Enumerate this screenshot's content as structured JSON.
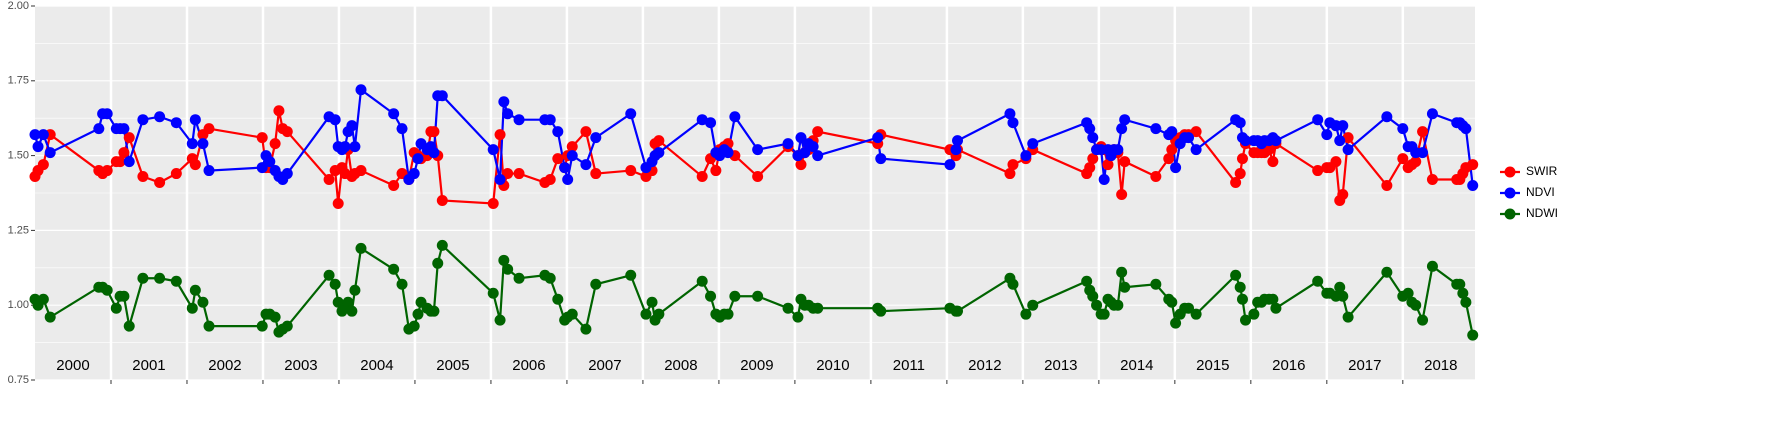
{
  "chart_data": {
    "type": "line",
    "x": [
      2000.0,
      2000.04,
      2000.11,
      2000.2,
      2000.84,
      2000.89,
      2000.95,
      2001.07,
      2001.12,
      2001.17,
      2001.24,
      2001.42,
      2001.64,
      2001.86,
      2002.07,
      2002.11,
      2002.21,
      2002.29,
      2002.99,
      2003.04,
      2003.09,
      2003.16,
      2003.21,
      2003.26,
      2003.32,
      2003.87,
      2003.95,
      2003.99,
      2004.04,
      2004.08,
      2004.12,
      2004.17,
      2004.21,
      2004.29,
      2004.72,
      2004.83,
      2004.92,
      2004.99,
      2005.04,
      2005.08,
      2005.16,
      2005.21,
      2005.25,
      2005.3,
      2005.36,
      2006.03,
      2006.12,
      2006.17,
      2006.22,
      2006.37,
      2006.71,
      2006.78,
      2006.88,
      2006.97,
      2007.01,
      2007.07,
      2007.25,
      2007.38,
      2007.84,
      2008.04,
      2008.12,
      2008.16,
      2008.21,
      2008.78,
      2008.89,
      2008.96,
      2009.01,
      2009.07,
      2009.12,
      2009.21,
      2009.51,
      2009.91,
      2010.04,
      2010.08,
      2010.13,
      2010.18,
      2010.24,
      2010.3,
      2011.09,
      2011.13,
      2012.04,
      2012.12,
      2012.14,
      2012.83,
      2012.87,
      2013.04,
      2013.13,
      2013.84,
      2013.88,
      2013.92,
      2013.97,
      2014.03,
      2014.07,
      2014.12,
      2014.16,
      2014.2,
      2014.25,
      2014.3,
      2014.34,
      2014.75,
      2014.92,
      2014.96,
      2015.01,
      2015.07,
      2015.13,
      2015.18,
      2015.28,
      2015.8,
      2015.86,
      2015.89,
      2015.93,
      2016.04,
      2016.09,
      2016.14,
      2016.18,
      2016.24,
      2016.29,
      2016.33,
      2016.88,
      2017.0,
      2017.04,
      2017.12,
      2017.17,
      2017.21,
      2017.28,
      2017.79,
      2018.0,
      2018.07,
      2018.12,
      2018.17,
      2018.26,
      2018.39,
      2018.71,
      2018.75,
      2018.79,
      2018.83,
      2018.92
    ],
    "series": [
      {
        "name": "SWIR",
        "color": "#ff0000",
        "values": [
          1.43,
          1.45,
          1.47,
          1.57,
          1.45,
          1.44,
          1.45,
          1.48,
          1.48,
          1.51,
          1.56,
          1.43,
          1.41,
          1.44,
          1.49,
          1.47,
          1.57,
          1.59,
          1.56,
          1.46,
          1.46,
          1.54,
          1.65,
          1.59,
          1.58,
          1.42,
          1.45,
          1.34,
          1.46,
          1.44,
          1.52,
          1.43,
          1.44,
          1.45,
          1.4,
          1.44,
          1.42,
          1.51,
          1.5,
          1.49,
          1.5,
          1.58,
          1.58,
          1.5,
          1.35,
          1.34,
          1.57,
          1.4,
          1.44,
          1.44,
          1.41,
          1.42,
          1.49,
          1.46,
          1.5,
          1.53,
          1.58,
          1.44,
          1.45,
          1.43,
          1.45,
          1.54,
          1.55,
          1.43,
          1.49,
          1.45,
          1.52,
          1.53,
          1.54,
          1.5,
          1.43,
          1.53,
          1.5,
          1.47,
          1.51,
          1.52,
          1.55,
          1.58,
          1.54,
          1.57,
          1.52,
          1.5,
          1.52,
          1.44,
          1.47,
          1.49,
          1.52,
          1.44,
          1.46,
          1.49,
          1.52,
          1.53,
          1.52,
          1.47,
          1.5,
          1.52,
          1.51,
          1.37,
          1.48,
          1.43,
          1.49,
          1.52,
          1.55,
          1.56,
          1.57,
          1.57,
          1.58,
          1.41,
          1.44,
          1.49,
          1.54,
          1.51,
          1.51,
          1.51,
          1.51,
          1.52,
          1.48,
          1.54,
          1.45,
          1.46,
          1.46,
          1.48,
          1.35,
          1.37,
          1.56,
          1.4,
          1.49,
          1.46,
          1.47,
          1.48,
          1.58,
          1.42,
          1.42,
          1.42,
          1.44,
          1.46,
          1.47
        ]
      },
      {
        "name": "NDVI",
        "color": "#0000ff",
        "values": [
          1.57,
          1.53,
          1.57,
          1.51,
          1.59,
          1.64,
          1.64,
          1.59,
          1.59,
          1.59,
          1.48,
          1.62,
          1.63,
          1.61,
          1.54,
          1.62,
          1.54,
          1.45,
          1.46,
          1.5,
          1.48,
          1.45,
          1.43,
          1.42,
          1.44,
          1.63,
          1.62,
          1.53,
          1.52,
          1.53,
          1.58,
          1.6,
          1.53,
          1.72,
          1.64,
          1.59,
          1.42,
          1.44,
          1.49,
          1.54,
          1.52,
          1.53,
          1.51,
          1.7,
          1.7,
          1.52,
          1.42,
          1.68,
          1.64,
          1.62,
          1.62,
          1.62,
          1.58,
          1.46,
          1.42,
          1.5,
          1.47,
          1.56,
          1.64,
          1.46,
          1.48,
          1.5,
          1.51,
          1.62,
          1.61,
          1.51,
          1.5,
          1.52,
          1.51,
          1.63,
          1.52,
          1.54,
          1.5,
          1.56,
          1.51,
          1.54,
          1.53,
          1.5,
          1.56,
          1.49,
          1.47,
          1.52,
          1.55,
          1.64,
          1.61,
          1.5,
          1.54,
          1.61,
          1.59,
          1.56,
          1.52,
          1.52,
          1.42,
          1.52,
          1.5,
          1.52,
          1.52,
          1.59,
          1.62,
          1.59,
          1.57,
          1.58,
          1.46,
          1.54,
          1.56,
          1.56,
          1.52,
          1.62,
          1.61,
          1.56,
          1.55,
          1.55,
          1.55,
          1.54,
          1.55,
          1.55,
          1.56,
          1.55,
          1.62,
          1.57,
          1.61,
          1.6,
          1.55,
          1.6,
          1.52,
          1.63,
          1.59,
          1.53,
          1.53,
          1.51,
          1.51,
          1.64,
          1.61,
          1.61,
          1.6,
          1.59,
          1.4
        ]
      },
      {
        "name": "NDWI",
        "color": "#006400",
        "values": [
          1.02,
          1.0,
          1.02,
          0.96,
          1.06,
          1.06,
          1.05,
          0.99,
          1.03,
          1.03,
          0.93,
          1.09,
          1.09,
          1.08,
          0.99,
          1.05,
          1.01,
          0.93,
          0.93,
          0.97,
          0.97,
          0.96,
          0.91,
          0.92,
          0.93,
          1.1,
          1.07,
          1.01,
          0.98,
          0.99,
          1.01,
          0.98,
          1.05,
          1.19,
          1.12,
          1.07,
          0.92,
          0.93,
          0.97,
          1.01,
          0.99,
          0.98,
          0.98,
          1.14,
          1.2,
          1.04,
          0.95,
          1.15,
          1.12,
          1.09,
          1.1,
          1.09,
          1.02,
          0.95,
          0.96,
          0.97,
          0.92,
          1.07,
          1.1,
          0.97,
          1.01,
          0.95,
          0.97,
          1.08,
          1.03,
          0.97,
          0.96,
          0.97,
          0.97,
          1.03,
          1.03,
          0.99,
          0.96,
          1.02,
          1.0,
          1.0,
          0.99,
          0.99,
          0.99,
          0.98,
          0.99,
          0.98,
          0.98,
          1.09,
          1.07,
          0.97,
          1.0,
          1.08,
          1.05,
          1.03,
          1.0,
          0.97,
          0.97,
          1.02,
          1.01,
          1.0,
          1.0,
          1.11,
          1.06,
          1.07,
          1.02,
          1.01,
          0.94,
          0.97,
          0.99,
          0.99,
          0.97,
          1.1,
          1.06,
          1.02,
          0.95,
          0.97,
          1.01,
          1.01,
          1.02,
          1.02,
          1.02,
          0.99,
          1.08,
          1.04,
          1.04,
          1.03,
          1.06,
          1.03,
          0.96,
          1.11,
          1.03,
          1.04,
          1.01,
          1.0,
          0.95,
          1.13,
          1.07,
          1.07,
          1.04,
          1.01,
          0.9
        ]
      }
    ],
    "xlim": [
      2000,
      2018.95
    ],
    "xticks": [
      2001,
      2002,
      2003,
      2004,
      2005,
      2006,
      2007,
      2008,
      2009,
      2010,
      2011,
      2012,
      2013,
      2014,
      2015,
      2016,
      2017,
      2018
    ],
    "xlabels": [
      {
        "value": 2000.5,
        "label": "2000"
      },
      {
        "value": 2001.5,
        "label": "2001"
      },
      {
        "value": 2002.5,
        "label": "2002"
      },
      {
        "value": 2003.5,
        "label": "2003"
      },
      {
        "value": 2004.5,
        "label": "2004"
      },
      {
        "value": 2005.5,
        "label": "2005"
      },
      {
        "value": 2006.5,
        "label": "2006"
      },
      {
        "value": 2007.5,
        "label": "2007"
      },
      {
        "value": 2008.5,
        "label": "2008"
      },
      {
        "value": 2009.5,
        "label": "2009"
      },
      {
        "value": 2010.5,
        "label": "2010"
      },
      {
        "value": 2011.5,
        "label": "2011"
      },
      {
        "value": 2012.5,
        "label": "2012"
      },
      {
        "value": 2013.5,
        "label": "2013"
      },
      {
        "value": 2014.5,
        "label": "2014"
      },
      {
        "value": 2015.5,
        "label": "2015"
      },
      {
        "value": 2016.5,
        "label": "2016"
      },
      {
        "value": 2017.5,
        "label": "2017"
      },
      {
        "value": 2018.5,
        "label": "2018"
      }
    ],
    "ylim": [
      0.75,
      2.0
    ],
    "yticks": [
      0.75,
      {
        "value": 1.0,
        "label": "1.00"
      },
      1.25,
      {
        "value": 1.5,
        "label": "1.50"
      },
      1.75,
      {
        "value": 2.0,
        "label": "2.00"
      }
    ],
    "grid": true,
    "legend": "right"
  }
}
